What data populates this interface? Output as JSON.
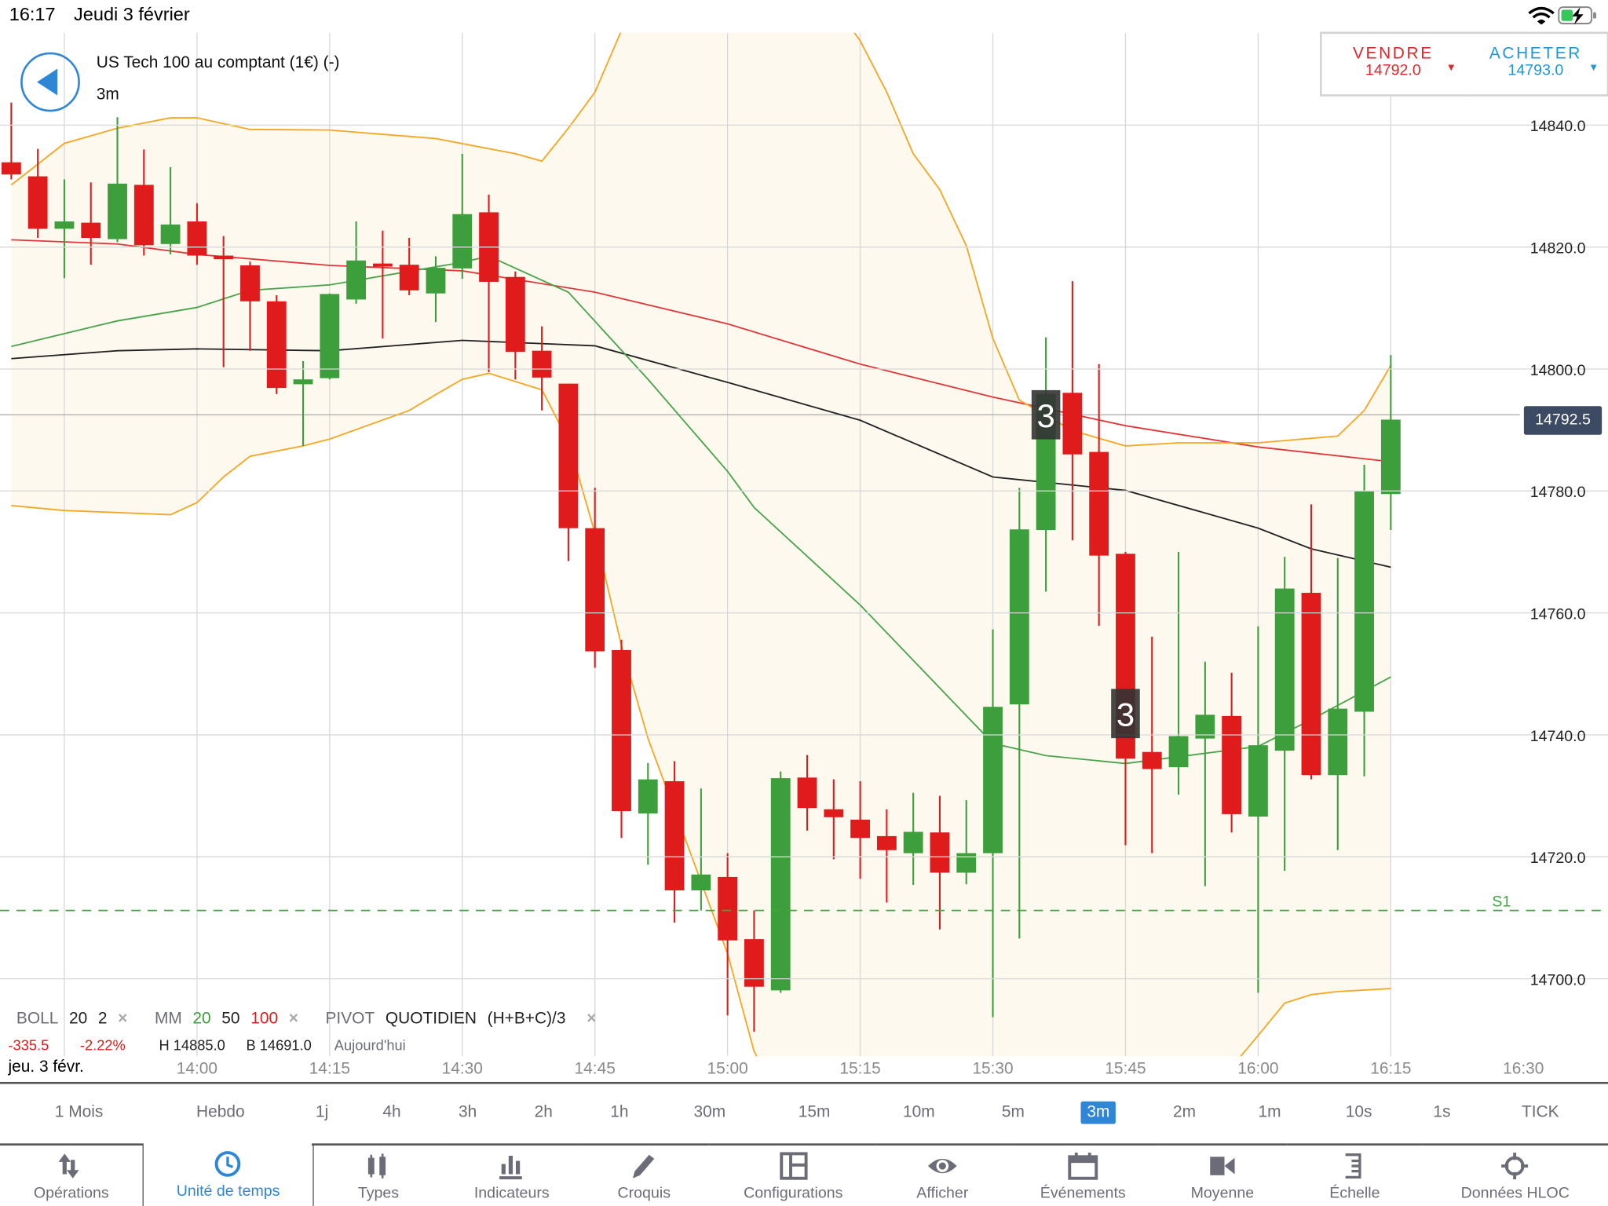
{
  "status_bar": {
    "time": "16:17",
    "date": "Jeudi 3 février",
    "icons": [
      "wifi-icon",
      "battery-charging-icon"
    ]
  },
  "header": {
    "title": "US Tech 100 au comptant (1€) (-)",
    "timeframe": "3m",
    "back_icon": "back-arrow-icon"
  },
  "trade": {
    "sell": {
      "label": "VENDRE",
      "price": "14792.0",
      "color": "#e0262b"
    },
    "buy": {
      "label": "ACHETER",
      "price": "14793.0",
      "color": "#1e96d8"
    }
  },
  "indicators": {
    "boll": {
      "name": "BOLL",
      "p1": "20",
      "p2": "2"
    },
    "mm": {
      "name": "MM",
      "p1": "20",
      "p2": "50",
      "p3": "100"
    },
    "pivot": {
      "name": "PIVOT",
      "mode": "QUOTIDIEN",
      "formula": "(H+B+C)/3"
    },
    "remove": "×",
    "summary": {
      "change": "-335.5",
      "change_pct": "-2.22%",
      "high": "H 14885.0",
      "low": "B 14691.0",
      "period": "Aujourd'hui"
    }
  },
  "current_price_label": "14792.5",
  "date_label": "jeu. 3 févr.",
  "timeframes": [
    "1 Mois",
    "Hebdo",
    "1j",
    "4h",
    "3h",
    "2h",
    "1h",
    "30m",
    "15m",
    "10m",
    "5m",
    "3m",
    "2m",
    "1m",
    "10s",
    "1s",
    "TICK"
  ],
  "selected_timeframe": "3m",
  "toolbar": [
    {
      "label": "Opérations",
      "icon": "up-down-arrows-icon"
    },
    {
      "label": "Unité de temps",
      "icon": "clock-icon",
      "active": true
    },
    {
      "label": "Types",
      "icon": "candlestick-icon"
    },
    {
      "label": "Indicateurs",
      "icon": "bar-chart-icon"
    },
    {
      "label": "Croquis",
      "icon": "pencil-icon"
    },
    {
      "label": "Configurations",
      "icon": "layout-icon"
    },
    {
      "label": "Afficher",
      "icon": "eye-icon"
    },
    {
      "label": "Événements",
      "icon": "calendar-icon"
    },
    {
      "label": "Moyenne",
      "icon": "camera-icon"
    },
    {
      "label": "Échelle",
      "icon": "scale-icon"
    },
    {
      "label": "Données HLOC",
      "icon": "crosshair-icon"
    }
  ],
  "chart_data": {
    "type": "candlestick",
    "interval_minutes": 3,
    "colors": {
      "up": "#3c9f3c",
      "down": "#e01b1b",
      "bollinger": "#f5a623",
      "band_fill": "#fdf9ef",
      "ma20": "#4aa34a",
      "ma50": "#222222",
      "ma100": "#e0383a",
      "pivot": "#3aaa3a",
      "marker_bg": "#333333"
    },
    "y_ticks": [
      "14700.0",
      "14720.0",
      "14740.0",
      "14760.0",
      "14780.0",
      "14800.0",
      "14820.0",
      "14840.0"
    ],
    "x_ticks": [
      "14:00",
      "14:15",
      "14:30",
      "14:45",
      "15:00",
      "15:15",
      "15:30",
      "15:45",
      "16:00",
      "16:15",
      "16:30"
    ],
    "grid": true,
    "current_price": 14792.5,
    "pivot_line": {
      "label": "S1",
      "value": 14711.2
    },
    "markers": [
      {
        "time": "15:36",
        "price": 14792.5,
        "text": "3"
      },
      {
        "time": "15:45",
        "price": 14743.5,
        "text": "3"
      }
    ],
    "candles": [
      [
        "13:39",
        14833.9,
        14843.7,
        14831.1,
        14831.9
      ],
      [
        "13:42",
        14831.6,
        14836.1,
        14821.5,
        14823.0
      ],
      [
        "13:45",
        14823.0,
        14831.1,
        14814.9,
        14824.2
      ],
      [
        "13:48",
        14824.0,
        14830.6,
        14817.1,
        14821.5
      ],
      [
        "13:51",
        14821.3,
        14841.3,
        14820.8,
        14830.4
      ],
      [
        "13:54",
        14830.2,
        14836.0,
        14818.6,
        14820.3
      ],
      [
        "13:57",
        14820.5,
        14833.1,
        14818.8,
        14823.7
      ],
      [
        "14:00",
        14824.2,
        14827.2,
        14817.1,
        14818.6
      ],
      [
        "14:03",
        14818.6,
        14821.8,
        14800.3,
        14818.0
      ],
      [
        "14:06",
        14817.0,
        14817.6,
        14803.0,
        14811.1
      ],
      [
        "14:09",
        14811.1,
        14812.1,
        14795.9,
        14796.9
      ],
      [
        "14:12",
        14797.5,
        14801.3,
        14787.4,
        14798.3
      ],
      [
        "14:15",
        14798.5,
        14812.4,
        14798.3,
        14812.3
      ],
      [
        "14:18",
        14811.4,
        14824.2,
        14810.7,
        14817.8
      ],
      [
        "14:21",
        14817.3,
        14822.7,
        14805.0,
        14816.8
      ],
      [
        "14:24",
        14817.1,
        14821.5,
        14812.1,
        14812.9
      ],
      [
        "14:27",
        14812.4,
        14818.5,
        14807.7,
        14816.6
      ],
      [
        "14:30",
        14816.5,
        14835.3,
        14814.8,
        14825.4
      ],
      [
        "14:33",
        14825.7,
        14828.6,
        14799.5,
        14814.3
      ],
      [
        "14:36",
        14815.1,
        14816.0,
        14798.3,
        14802.8
      ],
      [
        "14:39",
        14803.0,
        14807.0,
        14793.2,
        14798.6
      ],
      [
        "14:42",
        14797.6,
        14797.6,
        14768.5,
        14773.9
      ],
      [
        "14:45",
        14773.9,
        14780.5,
        14751.0,
        14753.7
      ],
      [
        "14:48",
        14753.9,
        14755.6,
        14723.1,
        14727.5
      ],
      [
        "14:51",
        14727.1,
        14735.4,
        14718.7,
        14732.7
      ],
      [
        "14:54",
        14732.4,
        14735.7,
        14709.2,
        14714.5
      ],
      [
        "14:57",
        14714.5,
        14731.2,
        14711.2,
        14717.1
      ],
      [
        "15:00",
        14716.7,
        14720.6,
        14694.0,
        14706.3
      ],
      [
        "15:03",
        14706.5,
        14711.2,
        14691.3,
        14698.7
      ],
      [
        "15:06",
        14698.1,
        14734.0,
        14697.7,
        14732.9
      ],
      [
        "15:09",
        14733.0,
        14736.7,
        14724.3,
        14728.0
      ],
      [
        "15:12",
        14727.8,
        14732.7,
        14719.6,
        14726.5
      ],
      [
        "15:15",
        14726.1,
        14732.4,
        14716.4,
        14723.1
      ],
      [
        "15:18",
        14723.4,
        14727.8,
        14712.5,
        14721.1
      ],
      [
        "15:21",
        14720.6,
        14730.5,
        14715.4,
        14724.1
      ],
      [
        "15:24",
        14724.0,
        14730.0,
        14708.1,
        14717.4
      ],
      [
        "15:27",
        14717.4,
        14729.3,
        14715.5,
        14720.6
      ],
      [
        "15:30",
        14720.6,
        14757.3,
        14693.7,
        14744.6
      ],
      [
        "15:33",
        14745.0,
        14780.5,
        14706.6,
        14773.7
      ],
      [
        "15:36",
        14773.6,
        14805.2,
        14763.5,
        14795.9
      ],
      [
        "15:39",
        14796.1,
        14814.4,
        14771.9,
        14786.0
      ],
      [
        "15:42",
        14786.4,
        14800.8,
        14757.9,
        14769.4
      ],
      [
        "15:45",
        14769.7,
        14770.0,
        14721.9,
        14736.1
      ],
      [
        "15:48",
        14737.2,
        14756.1,
        14720.6,
        14734.4
      ],
      [
        "15:51",
        14734.7,
        14770.0,
        14730.2,
        14739.8
      ],
      [
        "15:54",
        14739.4,
        14752.0,
        14715.2,
        14743.3
      ],
      [
        "15:57",
        14743.1,
        14750.2,
        14724.0,
        14727.0
      ],
      [
        "16:00",
        14726.6,
        14757.8,
        14697.7,
        14738.3
      ],
      [
        "16:03",
        14737.4,
        14769.2,
        14717.7,
        14764.0
      ],
      [
        "16:06",
        14763.3,
        14777.8,
        14732.7,
        14733.4
      ],
      [
        "16:09",
        14733.4,
        14769.0,
        14721.1,
        14744.3
      ],
      [
        "16:12",
        14743.8,
        14784.3,
        14733.2,
        14780.0
      ],
      [
        "16:15",
        14779.5,
        14802.3,
        14773.6,
        14791.7
      ]
    ],
    "candle_fields": [
      "time",
      "open",
      "high",
      "low",
      "close"
    ],
    "series": [
      {
        "name": "MM 100",
        "key": "ma100",
        "points": [
          [
            "13:39",
            14821.2
          ],
          [
            "13:51",
            14820.5
          ],
          [
            "14:00",
            14818.8
          ],
          [
            "14:15",
            14817.0
          ],
          [
            "14:30",
            14816.1
          ],
          [
            "14:45",
            14812.6
          ],
          [
            "15:00",
            14807.4
          ],
          [
            "15:15",
            14800.8
          ],
          [
            "15:30",
            14795.4
          ],
          [
            "15:45",
            14790.7
          ],
          [
            "16:00",
            14787.2
          ],
          [
            "16:15",
            14784.8
          ]
        ]
      },
      {
        "name": "MM 50",
        "key": "ma50",
        "points": [
          [
            "13:39",
            14801.7
          ],
          [
            "13:51",
            14803.0
          ],
          [
            "14:00",
            14803.3
          ],
          [
            "14:15",
            14803.0
          ],
          [
            "14:30",
            14804.7
          ],
          [
            "14:45",
            14803.8
          ],
          [
            "15:00",
            14797.8
          ],
          [
            "15:15",
            14791.6
          ],
          [
            "15:30",
            14782.3
          ],
          [
            "15:45",
            14780.1
          ],
          [
            "16:00",
            14773.9
          ],
          [
            "16:06",
            14770.5
          ],
          [
            "16:15",
            14767.5
          ]
        ]
      },
      {
        "name": "MM 20",
        "key": "ma20",
        "points": [
          [
            "13:39",
            14803.7
          ],
          [
            "13:51",
            14807.9
          ],
          [
            "14:00",
            14810.1
          ],
          [
            "14:06",
            14812.9
          ],
          [
            "14:15",
            14813.8
          ],
          [
            "14:30",
            14817.5
          ],
          [
            "14:33",
            14818.5
          ],
          [
            "14:42",
            14812.6
          ],
          [
            "14:51",
            14798.3
          ],
          [
            "15:00",
            14783.2
          ],
          [
            "15:03",
            14777.3
          ],
          [
            "15:15",
            14761.3
          ],
          [
            "15:30",
            14738.6
          ],
          [
            "15:36",
            14736.6
          ],
          [
            "15:45",
            14735.3
          ],
          [
            "16:00",
            14738.1
          ],
          [
            "16:06",
            14742.5
          ],
          [
            "16:15",
            14749.5
          ]
        ]
      },
      {
        "name": "BOLL upper",
        "key": "bollinger",
        "points": [
          [
            "13:39",
            14830.2
          ],
          [
            "13:45",
            14837.0
          ],
          [
            "13:51",
            14839.5
          ],
          [
            "13:57",
            14841.2
          ],
          [
            "14:00",
            14841.2
          ],
          [
            "14:06",
            14839.3
          ],
          [
            "14:15",
            14839.2
          ],
          [
            "14:27",
            14837.8
          ],
          [
            "14:36",
            14835.3
          ],
          [
            "14:39",
            14834.1
          ],
          [
            "14:42",
            14839.5
          ],
          [
            "14:45",
            14845.4
          ],
          [
            "14:48",
            14855.5
          ],
          [
            "14:51",
            14862.0
          ],
          [
            "15:03",
            14868.0
          ],
          [
            "15:12",
            14860.0
          ],
          [
            "15:15",
            14853.8
          ],
          [
            "15:18",
            14845.4
          ],
          [
            "15:21",
            14835.3
          ],
          [
            "15:24",
            14829.4
          ],
          [
            "15:27",
            14820.2
          ],
          [
            "15:30",
            14805.0
          ],
          [
            "15:33",
            14794.9
          ],
          [
            "15:39",
            14789.9
          ],
          [
            "15:45",
            14787.4
          ],
          [
            "15:51",
            14787.9
          ],
          [
            "16:00",
            14787.9
          ],
          [
            "16:09",
            14789.0
          ],
          [
            "16:12",
            14793.2
          ],
          [
            "16:15",
            14800.6
          ]
        ]
      },
      {
        "name": "BOLL lower",
        "key": "bollinger",
        "points": [
          [
            "13:39",
            14777.6
          ],
          [
            "13:45",
            14776.8
          ],
          [
            "13:57",
            14776.1
          ],
          [
            "14:00",
            14778.1
          ],
          [
            "14:03",
            14782.3
          ],
          [
            "14:06",
            14785.7
          ],
          [
            "14:12",
            14787.4
          ],
          [
            "14:15",
            14788.5
          ],
          [
            "14:24",
            14793.2
          ],
          [
            "14:27",
            14795.8
          ],
          [
            "14:30",
            14798.3
          ],
          [
            "14:33",
            14799.3
          ],
          [
            "14:39",
            14796.6
          ],
          [
            "14:42",
            14788.2
          ],
          [
            "14:45",
            14773.1
          ],
          [
            "14:48",
            14754.6
          ],
          [
            "14:51",
            14739.4
          ],
          [
            "14:54",
            14727.7
          ],
          [
            "14:57",
            14715.9
          ],
          [
            "15:00",
            14704.1
          ],
          [
            "15:03",
            14688.1
          ],
          [
            "15:06",
            14680.0
          ],
          [
            "15:30",
            14660.0
          ],
          [
            "15:57",
            14685.5
          ],
          [
            "16:00",
            14690.7
          ],
          [
            "16:03",
            14696.0
          ],
          [
            "16:06",
            14697.4
          ],
          [
            "16:09",
            14697.9
          ],
          [
            "16:15",
            14698.4
          ]
        ]
      }
    ]
  }
}
